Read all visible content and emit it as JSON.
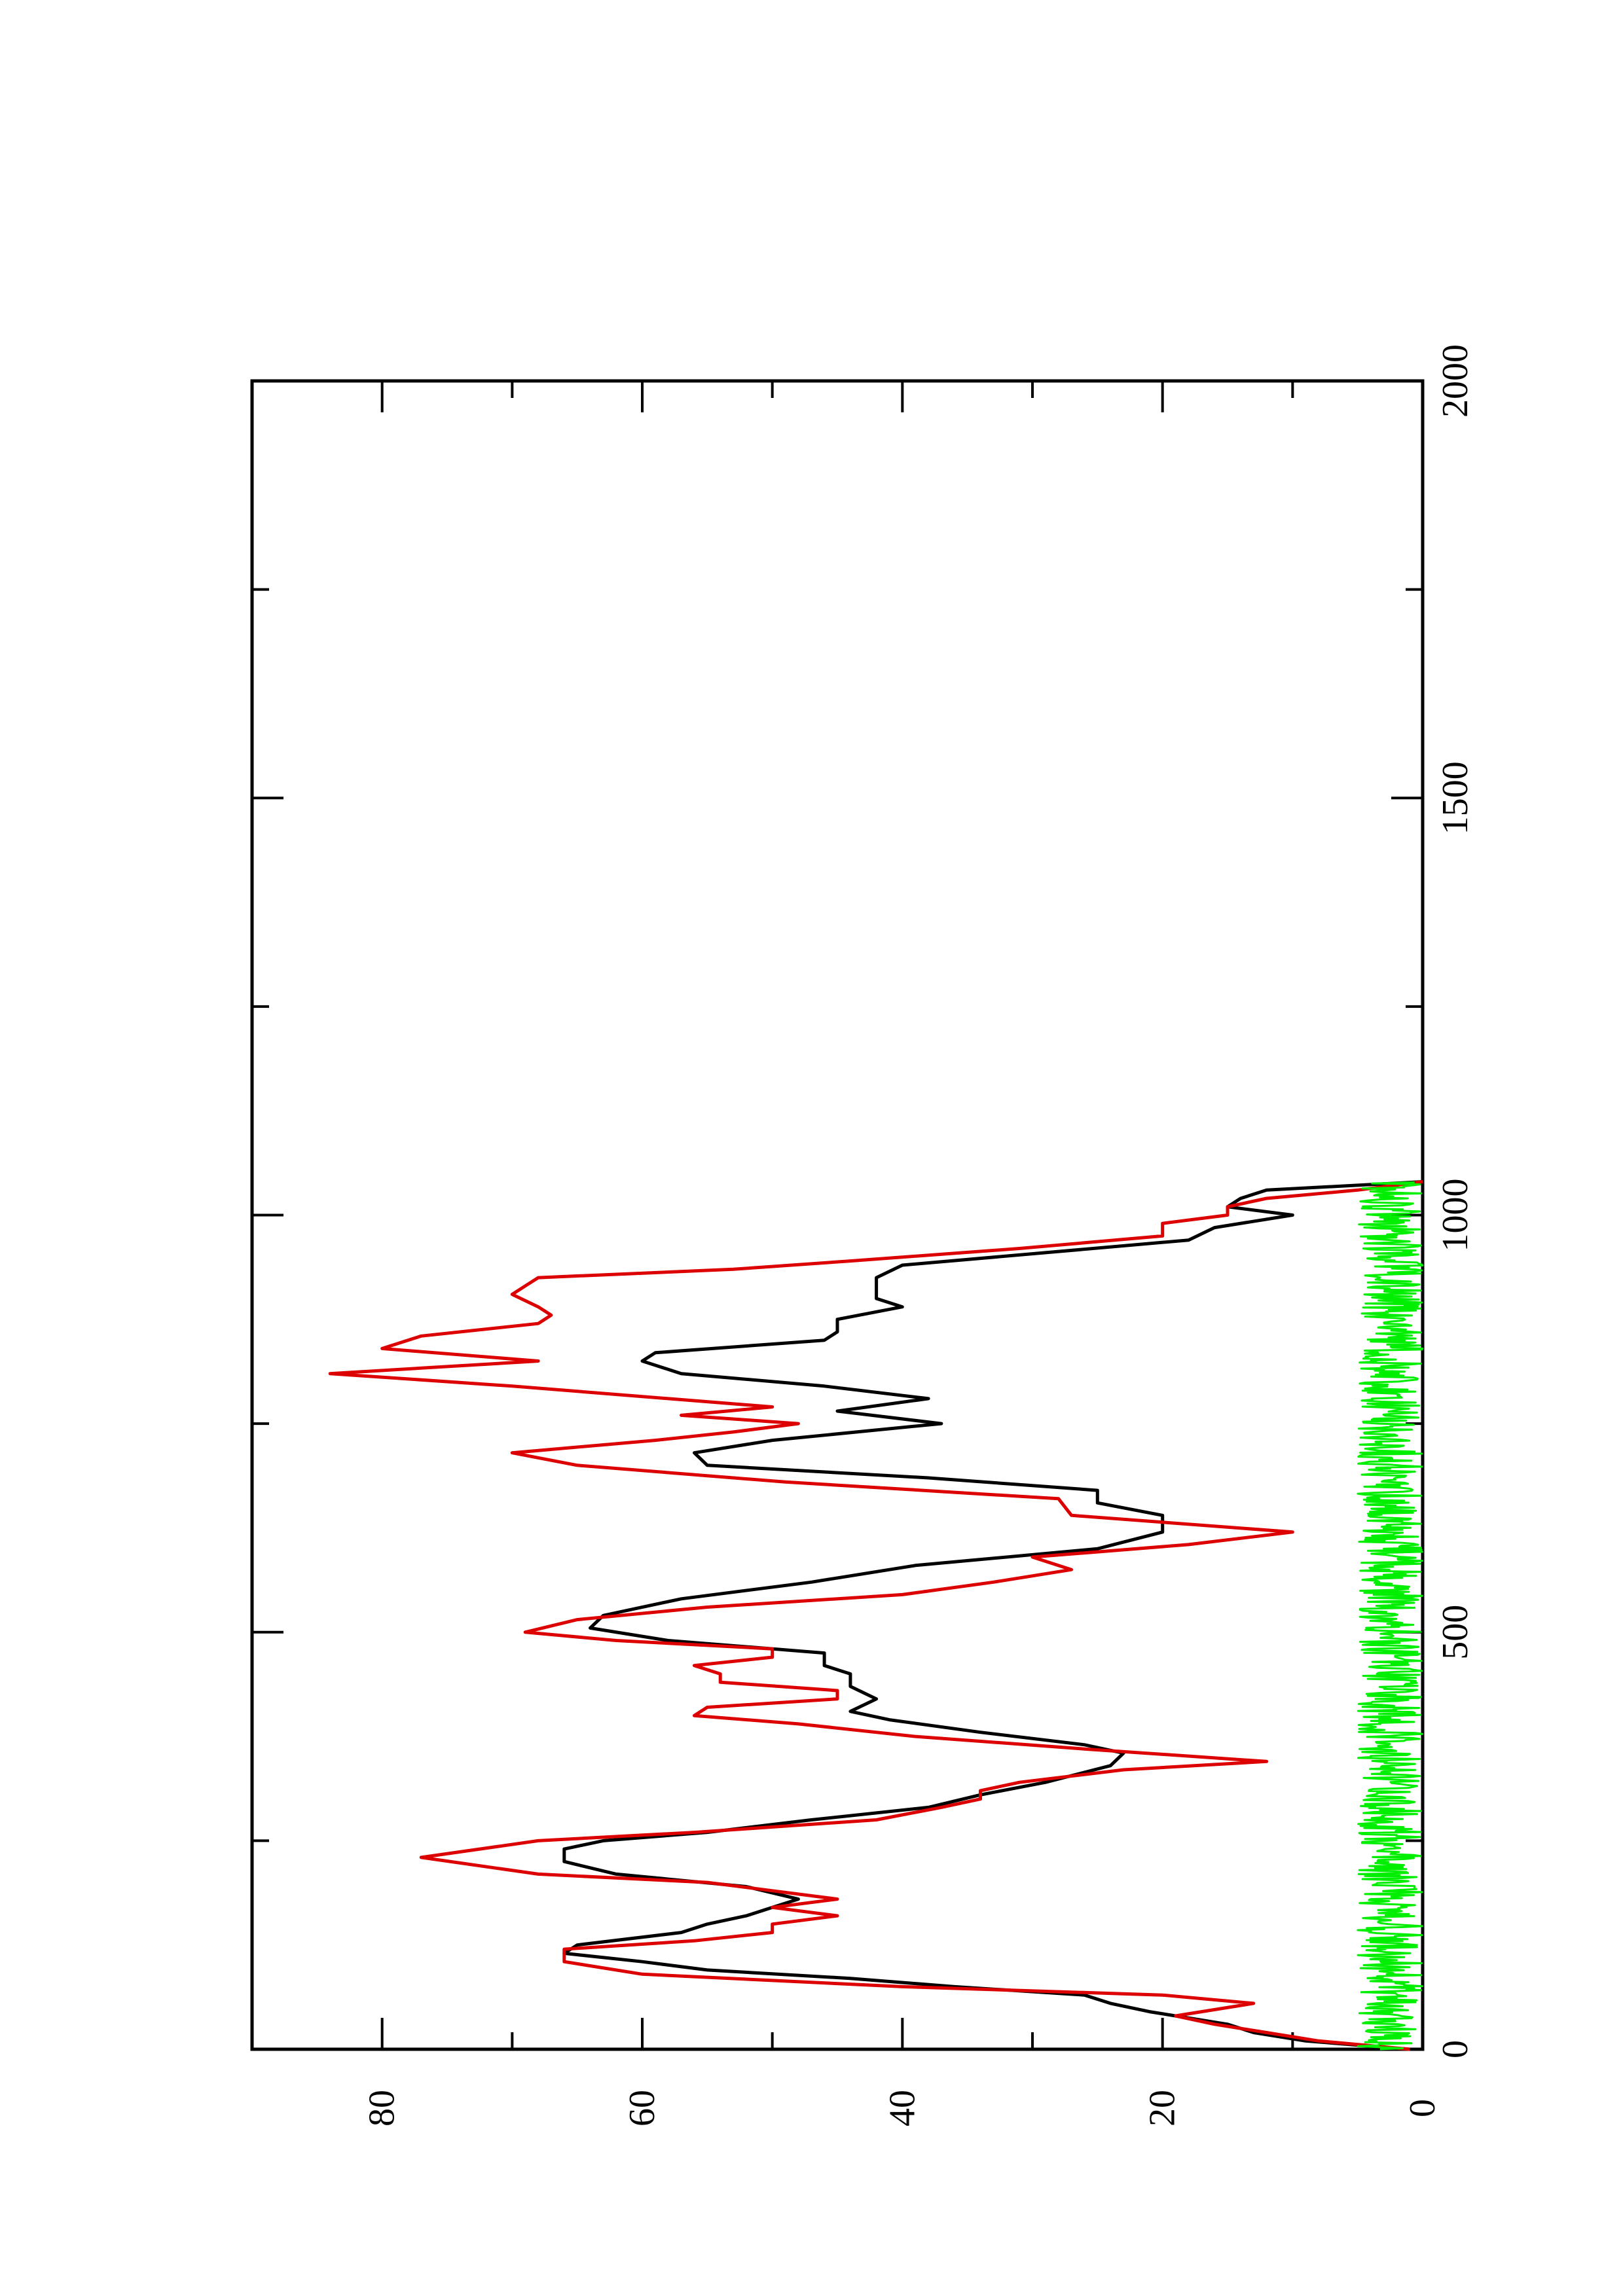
{
  "chart_data": {
    "type": "line",
    "orientation": "rotated-90-clockwise",
    "title": "",
    "xlabel": "",
    "ylabel": "",
    "xlim": [
      0,
      2000
    ],
    "ylim": [
      0,
      90
    ],
    "x_ticks": [
      0,
      500,
      1000,
      1500,
      2000
    ],
    "x_minor_ticks": [
      250,
      750,
      1250,
      1750
    ],
    "y_ticks": [
      0,
      20,
      40,
      60,
      80
    ],
    "y_minor_ticks": [
      10,
      30,
      50,
      70
    ],
    "tick_labels": {
      "x": [
        "0",
        "500",
        "1000",
        "1500",
        "2000"
      ],
      "y": [
        "0",
        "20",
        "40",
        "60",
        "80"
      ]
    },
    "grid": false,
    "legend": "none",
    "series": [
      {
        "color": "#000000",
        "x": [
          0,
          10,
          20,
          30,
          45,
          55,
          65,
          75,
          85,
          95,
          105,
          115,
          125,
          140,
          150,
          160,
          170,
          180,
          195,
          210,
          225,
          240,
          250,
          260,
          275,
          290,
          305,
          320,
          340,
          355,
          365,
          380,
          395,
          405,
          420,
          435,
          450,
          460,
          475,
          490,
          505,
          520,
          540,
          560,
          580,
          600,
          620,
          640,
          655,
          670,
          685,
          700,
          715,
          730,
          750,
          765,
          780,
          795,
          810,
          825,
          835,
          850,
          860,
          875,
          890,
          900,
          915,
          925,
          940,
          955,
          970,
          985,
          1000,
          1010,
          1020,
          1030,
          1040
        ],
        "y": [
          1,
          9,
          13,
          15,
          21,
          24,
          26,
          36,
          44,
          55,
          60,
          66,
          65,
          57,
          55,
          52,
          50,
          48,
          52,
          62,
          66,
          66,
          63,
          55,
          47,
          38,
          34,
          29,
          24,
          23,
          26,
          34,
          41,
          44,
          42,
          44,
          44,
          46,
          46,
          58,
          64,
          63,
          57,
          47,
          39,
          25,
          20,
          20,
          25,
          25,
          38,
          55,
          56,
          50,
          37,
          45,
          38,
          46,
          57,
          60,
          59,
          46,
          45,
          45,
          40,
          42,
          42,
          42,
          40,
          29,
          18,
          16,
          10,
          15,
          14,
          12,
          0
        ]
      },
      {
        "color": "#dd0000",
        "x": [
          0,
          10,
          20,
          30,
          40,
          55,
          65,
          75,
          90,
          105,
          120,
          130,
          140,
          150,
          160,
          170,
          180,
          190,
          200,
          210,
          230,
          250,
          260,
          275,
          290,
          300,
          310,
          320,
          335,
          345,
          360,
          375,
          390,
          400,
          410,
          420,
          430,
          440,
          450,
          460,
          470,
          480,
          490,
          500,
          515,
          530,
          545,
          560,
          575,
          590,
          605,
          620,
          640,
          660,
          680,
          700,
          715,
          730,
          740,
          750,
          760,
          770,
          780,
          795,
          810,
          825,
          840,
          855,
          870,
          880,
          890,
          905,
          915,
          925,
          935,
          945,
          960,
          975,
          990,
          1000,
          1010,
          1020,
          1030,
          1040
        ],
        "y": [
          1,
          8,
          12,
          16,
          19,
          13,
          20,
          40,
          60,
          66,
          66,
          56,
          50,
          50,
          45,
          50,
          45,
          50,
          55,
          68,
          77,
          68,
          56,
          42,
          37,
          34,
          34,
          31,
          23,
          12,
          26,
          39,
          48,
          56,
          55,
          45,
          45,
          54,
          54,
          56,
          50,
          50,
          62,
          69,
          65,
          55,
          40,
          33,
          27,
          30,
          18,
          10,
          27,
          28,
          49,
          65,
          70,
          59,
          53,
          48,
          57,
          50,
          58,
          70,
          84,
          68,
          80,
          77,
          68,
          67,
          68,
          70,
          69,
          68,
          53,
          44,
          31,
          20,
          20,
          15,
          15,
          12,
          5,
          0
        ]
      },
      {
        "color": "#00ee00",
        "noise": true,
        "x_range": [
          0,
          1040
        ],
        "y_range": [
          0,
          5
        ]
      }
    ]
  }
}
